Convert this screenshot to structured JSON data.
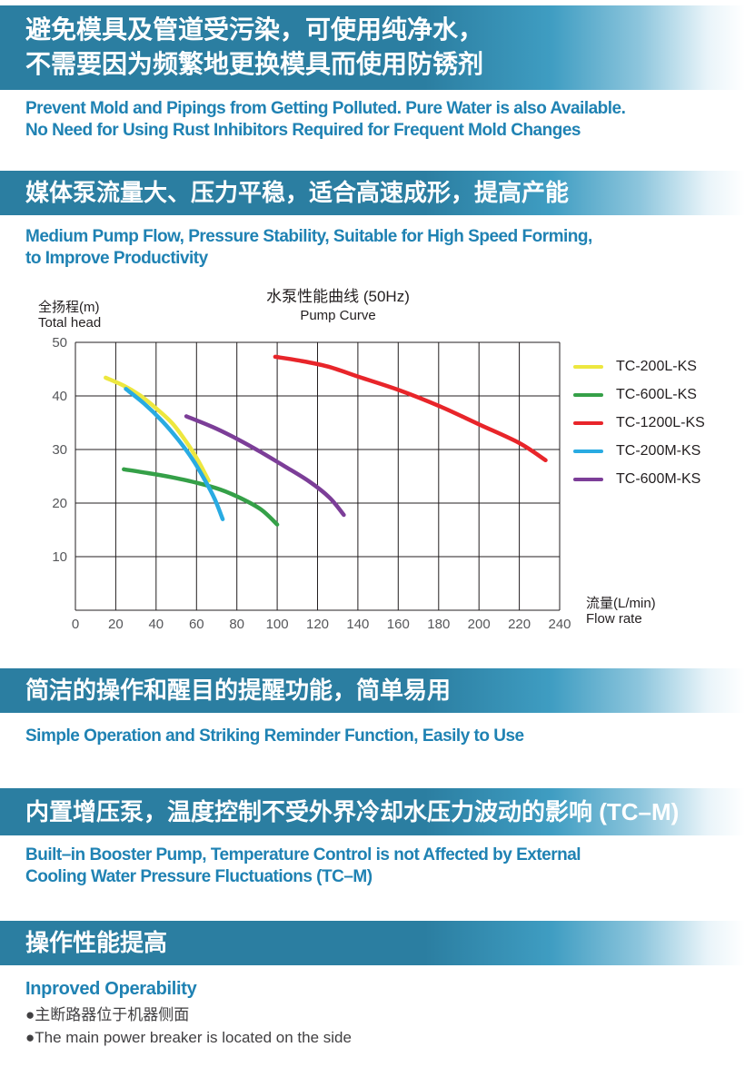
{
  "colors": {
    "banner_blue": "#2b7ea1",
    "heading_blue": "#1f82b3",
    "body_text": "#414042",
    "axis_line": "#231f20",
    "tick_label": "#56575a"
  },
  "sections": {
    "purity": {
      "banner_line1": "避免模具及管道受污染，可使用纯净水，",
      "banner_line2": "不需要因为频繁地更换模具而使用防锈剂",
      "en_line1": "Prevent Mold and Pipings from Getting Polluted. Pure Water is also Available.",
      "en_line2": "No Need for Using Rust Inhibitors Required for Frequent Mold Changes"
    },
    "pump": {
      "banner": "媒体泵流量大、压力平稳，适合高速成形，提高产能",
      "en_line1": "Medium Pump Flow, Pressure Stability, Suitable for High Speed Forming,",
      "en_line2": "to Improve Productivity"
    },
    "operation": {
      "banner": "简洁的操作和醒目的提醒功能，简单易用",
      "en_line1": "Simple Operation and Striking Reminder Function, Easily to Use"
    },
    "booster": {
      "banner": "内置增压泵，温度控制不受外界冷却水压力波动的影响 (TC–M)",
      "en_line1": "Built–in Booster Pump, Temperature Control is not Affected by External",
      "en_line2": "Cooling Water Pressure Fluctuations (TC–M)"
    },
    "operability": {
      "banner": "操作性能提高",
      "en_line1": "Inproved Operability",
      "bullet_zh": "●主断路器位于机器侧面",
      "bullet_en": "●The main power breaker is located on the side"
    }
  },
  "chart_data": {
    "type": "line",
    "title_zh": "水泵性能曲线 (50Hz)",
    "title_en": "Pump Curve",
    "ylabel_zh": "全扬程(m)",
    "ylabel_en": "Total head",
    "xlabel_zh": "流量(L/min)",
    "xlabel_en": "Flow rate",
    "xlim": [
      0,
      240
    ],
    "ylim": [
      0,
      50
    ],
    "x_ticks": [
      0,
      20,
      40,
      60,
      80,
      100,
      120,
      140,
      160,
      180,
      200,
      220,
      240
    ],
    "y_ticks": [
      10,
      20,
      30,
      40,
      50
    ],
    "grid": {
      "x_step": 20,
      "y_step": 10,
      "on": true
    },
    "legend_position": "right",
    "series": [
      {
        "name": "TC-200L-KS",
        "color": "#ede73f",
        "points": [
          [
            15,
            43.4
          ],
          [
            24,
            41.9
          ],
          [
            32,
            40.1
          ],
          [
            40,
            37.7
          ],
          [
            48,
            34.9
          ],
          [
            55,
            31.4
          ],
          [
            61,
            27.8
          ],
          [
            66,
            24.2
          ]
        ]
      },
      {
        "name": "TC-600L-KS",
        "color": "#35a048",
        "points": [
          [
            24,
            26.3
          ],
          [
            36,
            25.6
          ],
          [
            48,
            24.8
          ],
          [
            60,
            23.8
          ],
          [
            72,
            22.5
          ],
          [
            82,
            20.9
          ],
          [
            92,
            18.8
          ],
          [
            100,
            16
          ]
        ]
      },
      {
        "name": "TC-1200L-KS",
        "color": "#e8252a",
        "points": [
          [
            99,
            47.3
          ],
          [
            111,
            46.6
          ],
          [
            125,
            45.5
          ],
          [
            141,
            43.5
          ],
          [
            161,
            41
          ],
          [
            181,
            38
          ],
          [
            200,
            34.7
          ],
          [
            220,
            31.2
          ],
          [
            233,
            28
          ]
        ]
      },
      {
        "name": "TC-200M-KS",
        "color": "#29abe2",
        "points": [
          [
            25,
            41.3
          ],
          [
            34,
            38.6
          ],
          [
            43,
            35.3
          ],
          [
            51,
            31.8
          ],
          [
            58,
            28.2
          ],
          [
            64,
            24.4
          ],
          [
            69,
            20.8
          ],
          [
            73,
            17
          ]
        ]
      },
      {
        "name": "TC-600M-KS",
        "color": "#7c3e98",
        "points": [
          [
            55,
            36.2
          ],
          [
            68,
            34.2
          ],
          [
            80,
            32
          ],
          [
            92,
            29.5
          ],
          [
            104,
            26.8
          ],
          [
            116,
            24
          ],
          [
            126,
            21
          ],
          [
            133,
            17.8
          ]
        ]
      }
    ]
  }
}
